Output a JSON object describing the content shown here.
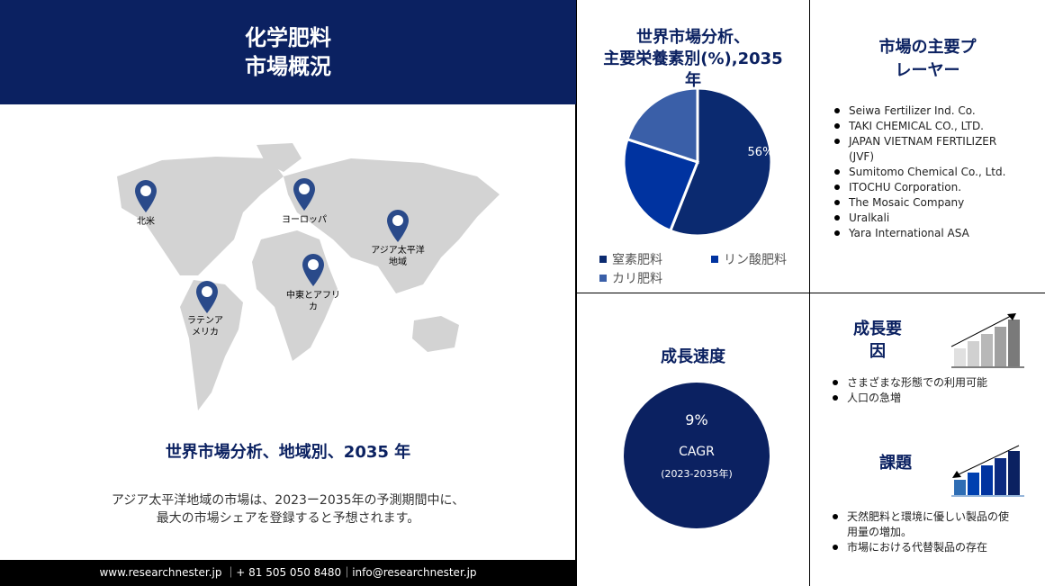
{
  "header": {
    "title_line1": "化学肥料",
    "title_line2": "市場概況"
  },
  "map": {
    "regions": [
      {
        "label": "北米"
      },
      {
        "label": "ヨーロッパ"
      },
      {
        "label": "アジア太平洋地域"
      },
      {
        "label": "中東とアフリカ"
      },
      {
        "label": "ラテンアメリカ"
      }
    ],
    "pin_color": "#2a4a8a"
  },
  "region_title": "世界市場分析、地域別、2035 年",
  "region_text_line1": "アジア太平洋地域の市場は、2023ー2035年の予測期間中に、",
  "region_text_line2": "最大の市場シェアを登録すると予想されます。",
  "footer": "www.researchnester.jp ｜+ 81 505 050 8480｜info@researchnester.jp",
  "pie": {
    "title_line1": "世界市場分析、",
    "title_line2": "主要栄養素別(%),2035",
    "title_line3": "年",
    "chart_data": {
      "type": "pie",
      "categories": [
        "窒素肥料",
        "リン酸肥料",
        "カリ肥料"
      ],
      "values": [
        56,
        24,
        20
      ],
      "colors": [
        "#0b2a70",
        "#0033a0",
        "#3a5fa8"
      ],
      "data_labels": [
        "56%",
        "",
        ""
      ],
      "legend": "bottom"
    }
  },
  "players": {
    "title_line1": "市場の主要プ",
    "title_line2": "レーヤー",
    "items": [
      "Seiwa Fertilizer Ind. Co.",
      "TAKI CHEMICAL CO., LTD.",
      " JAPAN VIETNAM FERTILIZER (JVF)",
      "Sumitomo Chemical Co., Ltd.",
      "ITOCHU Corporation.",
      "The Mosaic Company",
      "Uralkali",
      "Yara International ASA"
    ]
  },
  "growth": {
    "title": "成長速度",
    "value": "9%",
    "label": "CAGR",
    "period": "(2023-2035年)",
    "circle_color": "#0b2161"
  },
  "drivers": {
    "title_line1": "成長要",
    "title_line2": "因",
    "items": [
      "さまざまな形態での利用可能",
      "人口の急増"
    ]
  },
  "challenges": {
    "title": "課題",
    "items": [
      "天然肥料と環境に優しい製品の使用量の増加。",
      "市場における代替製品の存在"
    ]
  }
}
